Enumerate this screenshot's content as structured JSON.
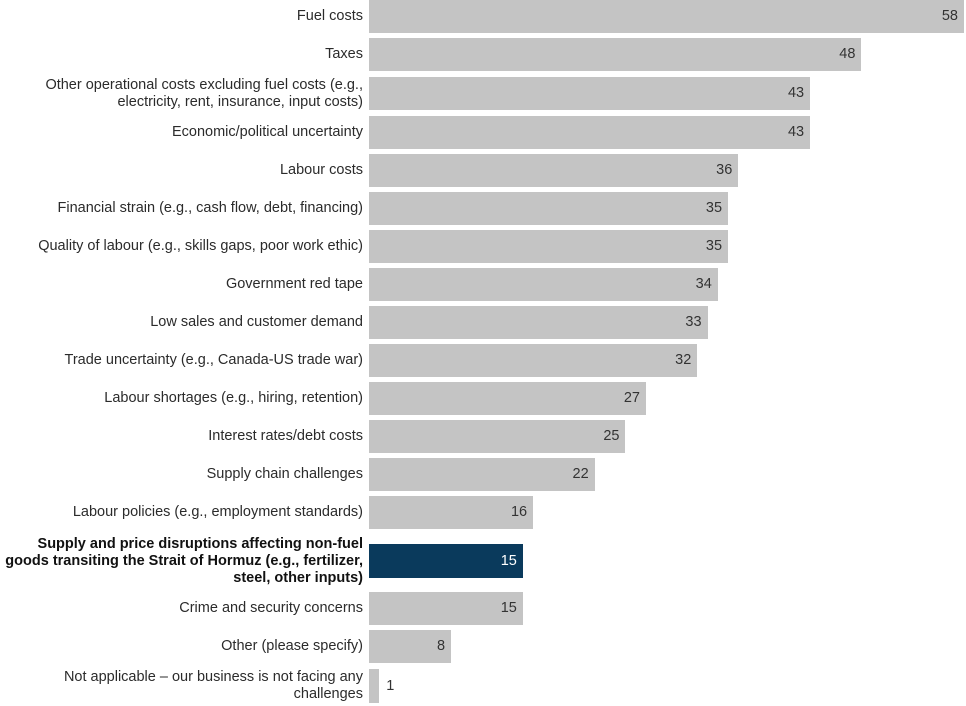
{
  "chart_data": {
    "type": "bar",
    "orientation": "horizontal",
    "categories": [
      "Fuel costs",
      "Taxes",
      "Other operational costs excluding fuel costs (e.g., electricity, rent, insurance, input costs)",
      "Economic/political uncertainty",
      "Labour costs",
      "Financial strain (e.g., cash flow, debt, financing)",
      "Quality of labour (e.g., skills gaps, poor work ethic)",
      "Government red tape",
      "Low sales and customer demand",
      "Trade uncertainty (e.g., Canada-US trade war)",
      "Labour shortages (e.g., hiring, retention)",
      "Interest rates/debt costs",
      "Supply chain challenges",
      "Labour policies (e.g., employment standards)",
      "Supply and price disruptions affecting non-fuel goods transiting the Strait of Hormuz (e.g., fertilizer, steel, other inputs)",
      "Crime and security concerns",
      "Other (please specify)",
      "Not applicable – our business is not facing any challenges"
    ],
    "values": [
      58,
      48,
      43,
      43,
      36,
      35,
      35,
      34,
      33,
      32,
      27,
      25,
      22,
      16,
      15,
      15,
      8,
      1
    ],
    "highlighted_index": 14,
    "xlim": [
      0,
      58
    ],
    "grid": false,
    "legend": "none",
    "colors": {
      "bar": "#c4c4c4",
      "highlight": "#0a3a5c"
    }
  }
}
